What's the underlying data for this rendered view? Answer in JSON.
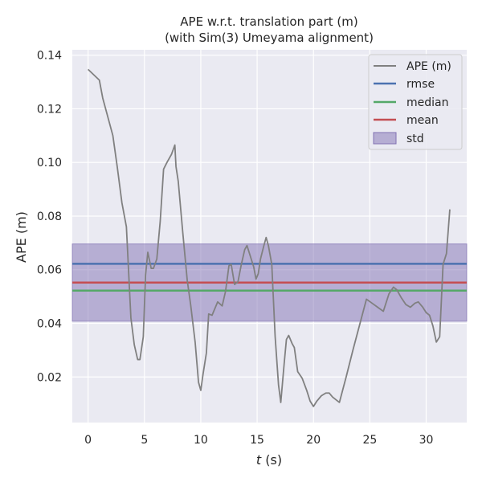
{
  "chart_data": {
    "type": "line",
    "title": "APE w.r.t. translation part (m)",
    "subtitle": "(with Sim(3) Umeyama alignment)",
    "xlabel_italic": "t",
    "xlabel_rest": " (s)",
    "ylabel": "APE (m)",
    "xlim": [
      -1.4,
      33.6
    ],
    "ylim": [
      0.003,
      0.142
    ],
    "xticks": [
      0,
      5,
      10,
      15,
      20,
      25,
      30
    ],
    "yticks": [
      0.02,
      0.04,
      0.06,
      0.08,
      0.1,
      0.12,
      0.14
    ],
    "grid": true,
    "legend_position": "top-right",
    "legend": [
      "APE (m)",
      "rmse",
      "median",
      "mean",
      "std"
    ],
    "series": [
      {
        "name": "APE (m)",
        "color": "#808080",
        "x": [
          0,
          1.0,
          1.3,
          2.2,
          2.6,
          3.0,
          3.4,
          3.8,
          4.1,
          4.4,
          4.6,
          4.9,
          5.1,
          5.3,
          5.6,
          5.8,
          6.1,
          6.4,
          6.7,
          7.0,
          7.4,
          7.7,
          7.8,
          8.0,
          8.4,
          8.8,
          9.1,
          9.5,
          9.8,
          10.0,
          10.2,
          10.5,
          10.7,
          11.0,
          11.5,
          11.9,
          12.2,
          12.5,
          12.7,
          13.0,
          13.3,
          13.6,
          13.9,
          14.1,
          14.4,
          14.7,
          14.9,
          15.1,
          15.3,
          15.6,
          15.8,
          16.0,
          16.3,
          16.6,
          16.9,
          17.1,
          17.4,
          17.6,
          17.8,
          18.1,
          18.3,
          18.6,
          19.0,
          19.4,
          19.7,
          20.0,
          20.3,
          20.7,
          21.1,
          21.4,
          21.7,
          22.3,
          22.9,
          23.5,
          24.1,
          24.7,
          25.2,
          25.7,
          26.2,
          26.7,
          27.1,
          27.4,
          27.8,
          28.2,
          28.6,
          29.0,
          29.3,
          29.7,
          30.0,
          30.3,
          30.6,
          30.9,
          31.2,
          31.5,
          31.8,
          32.1
        ],
        "values": [
          0.1347,
          0.1307,
          0.124,
          0.11,
          0.098,
          0.085,
          0.076,
          0.042,
          0.032,
          0.0265,
          0.0265,
          0.035,
          0.058,
          0.0665,
          0.0605,
          0.0605,
          0.064,
          0.078,
          0.0975,
          0.1,
          0.103,
          0.1065,
          0.0985,
          0.093,
          0.074,
          0.056,
          0.047,
          0.033,
          0.018,
          0.015,
          0.021,
          0.029,
          0.0435,
          0.043,
          0.048,
          0.0465,
          0.052,
          0.0615,
          0.062,
          0.0545,
          0.0555,
          0.062,
          0.0675,
          0.069,
          0.065,
          0.061,
          0.0565,
          0.0585,
          0.064,
          0.069,
          0.072,
          0.069,
          0.062,
          0.035,
          0.017,
          0.0105,
          0.025,
          0.034,
          0.0355,
          0.0325,
          0.031,
          0.022,
          0.0195,
          0.015,
          0.011,
          0.009,
          0.011,
          0.013,
          0.014,
          0.014,
          0.0125,
          0.0105,
          0.02,
          0.03,
          0.0395,
          0.049,
          0.0475,
          0.046,
          0.0445,
          0.051,
          0.0535,
          0.0525,
          0.0495,
          0.047,
          0.046,
          0.0475,
          0.048,
          0.046,
          0.044,
          0.043,
          0.039,
          0.033,
          0.035,
          0.062,
          0.066,
          0.0825
        ]
      },
      {
        "name": "rmse",
        "color": "#4c72b0",
        "value": 0.0622
      },
      {
        "name": "median",
        "color": "#55a868",
        "value": 0.0522
      },
      {
        "name": "mean",
        "color": "#c44e52",
        "value": 0.0552
      },
      {
        "name": "std",
        "color": "#8172b3",
        "range": [
          0.0408,
          0.0696
        ]
      }
    ]
  }
}
